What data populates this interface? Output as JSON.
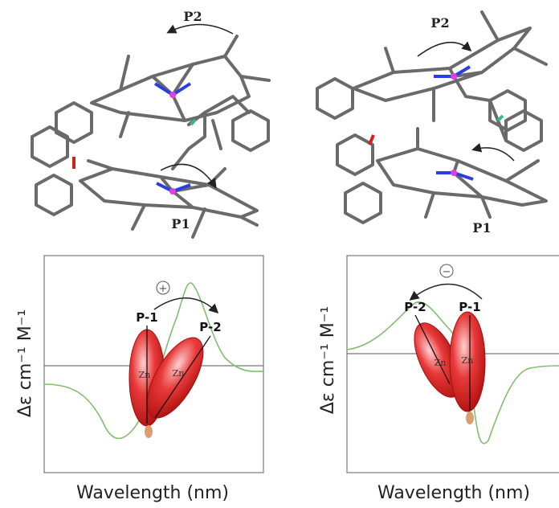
{
  "panels": [
    {
      "molecule": {
        "top_label": "P2",
        "bottom_label": "P1"
      },
      "spectrum": {
        "sign": "+",
        "upper_label": "P-1",
        "lower_label": "P-2",
        "metal_left": "Zn",
        "metal_right": "Zn",
        "y_label": "Δε cm⁻¹ M⁻¹",
        "x_label": "Wavelength (nm)"
      }
    },
    {
      "molecule": {
        "top_label": "P2",
        "bottom_label": "P1"
      },
      "spectrum": {
        "sign": "−",
        "left_label": "P-2",
        "right_label": "P-1",
        "metal_left": "Zn",
        "metal_right": "Zn",
        "y_label": "Δε cm⁻¹ M⁻¹",
        "x_label": "Wavelength (nm)"
      }
    }
  ]
}
